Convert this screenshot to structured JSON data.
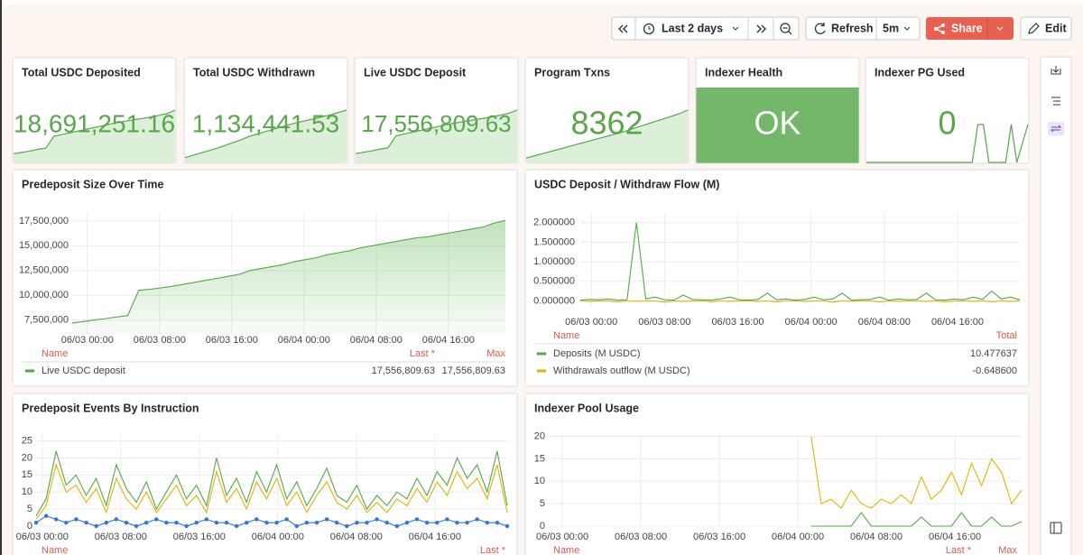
{
  "toolbar": {
    "time_range": "Last 2 days",
    "refresh": "Refresh",
    "interval": "5m",
    "share": "Share",
    "edit": "Edit"
  },
  "stats": [
    {
      "title": "Total USDC Deposited",
      "value": "18,691,251.16",
      "spark": [
        2,
        2.3,
        2.6,
        3,
        3.3,
        6,
        6.4,
        6.8,
        7.2,
        7.6,
        8,
        8.4,
        8.8,
        9.2,
        9.5,
        9.8,
        10.1,
        10.4,
        10.8,
        11.2,
        12
      ]
    },
    {
      "title": "Total USDC Withdrawn",
      "value": "1,134,441.53",
      "spark": [
        1,
        1.5,
        2,
        2.5,
        3,
        3.6,
        4.2,
        4.8,
        5.5,
        6,
        6.5,
        7,
        7.5,
        8,
        8.4,
        8.8,
        9.2,
        9.6,
        10,
        10.5,
        11
      ]
    },
    {
      "title": "Live USDC Deposit",
      "value": "17,556,809.63",
      "spark": [
        2,
        2.3,
        2.6,
        3,
        3.3,
        6,
        6.4,
        6.8,
        7.2,
        7.6,
        8,
        8.4,
        8.8,
        9.1,
        9.4,
        9.7,
        10,
        10.3,
        10.7,
        11.1,
        11.8
      ]
    },
    {
      "title": "Program Txns",
      "value": "8362",
      "spark": [
        1,
        1.5,
        2,
        2.5,
        3,
        3.5,
        4,
        4.5,
        5,
        5.5,
        6,
        6.5,
        7,
        7.6,
        8.2,
        8.8,
        9.4,
        10,
        10.6,
        11.2,
        12
      ]
    },
    {
      "title": "Indexer Health",
      "value": "OK"
    },
    {
      "title": "Indexer PG Used",
      "value": "0",
      "spark": [
        0,
        0,
        0,
        0,
        0,
        0,
        0,
        0,
        0,
        0,
        0,
        0,
        0,
        0,
        0,
        0,
        0,
        0,
        0,
        0,
        1,
        1,
        0,
        0,
        0,
        0,
        1,
        0,
        0.5,
        1
      ]
    }
  ],
  "chart_data": [
    {
      "type": "line",
      "title": "Predeposit Size Over Time",
      "ylim": [
        6100000,
        18400000
      ],
      "yticks": [
        {
          "value": 7500000,
          "label": "7,500,000"
        },
        {
          "value": 10000000,
          "label": "10,000,000"
        },
        {
          "value": 12500000,
          "label": "12,500,000"
        },
        {
          "value": 15000000,
          "label": "15,000,000"
        },
        {
          "value": 17500000,
          "label": "17,500,000"
        }
      ],
      "x_labels": [
        "06/03 00:00",
        "06/03 08:00",
        "06/03 16:00",
        "06/04 00:00",
        "06/04 08:00",
        "06/04 16:00"
      ],
      "legend_columns": [
        "Name",
        "Last *",
        "Max"
      ],
      "series": [
        {
          "name": "Live USDC deposit",
          "color": "#56a64b",
          "fill": true,
          "legend": [
            "17,556,809.63",
            "17,556,809.63"
          ],
          "values": [
            7200000,
            7350000,
            7500000,
            7650000,
            7800000,
            7950000,
            10500000,
            10600000,
            10750000,
            10900000,
            11100000,
            11300000,
            11500000,
            11700000,
            11900000,
            12100000,
            12500000,
            12700000,
            12900000,
            13100000,
            13400000,
            13600000,
            13800000,
            14100000,
            14300000,
            14500000,
            14800000,
            15000000,
            15200000,
            15400000,
            15600000,
            15800000,
            15900000,
            16100000,
            16300000,
            16500000,
            16700000,
            16900000,
            17300000,
            17556809.63
          ]
        }
      ]
    },
    {
      "type": "line",
      "title": "USDC Deposit / Withdraw Flow (M)",
      "ylim": [
        -0.15,
        2.27
      ],
      "yticks": [
        {
          "value": 0,
          "label": "0.000000"
        },
        {
          "value": 0.5,
          "label": "0.500000"
        },
        {
          "value": 1,
          "label": "1.000000"
        },
        {
          "value": 1.5,
          "label": "1.500000"
        },
        {
          "value": 2,
          "label": "2.000000"
        }
      ],
      "x_labels": [
        "06/03 00:00",
        "06/03 08:00",
        "06/03 16:00",
        "06/04 00:00",
        "06/04 08:00",
        "06/04 16:00"
      ],
      "legend_columns": [
        "Name",
        "Total"
      ],
      "series": [
        {
          "name": "Deposits (M USDC)",
          "color": "#56a64b",
          "legend": [
            "10.477637"
          ],
          "values": [
            0.02,
            0.04,
            0.03,
            0.05,
            0.02,
            0.03,
            2.0,
            0.05,
            0.1,
            0.03,
            0.02,
            0.15,
            0.04,
            0.03,
            0.02,
            0.05,
            0.1,
            0.03,
            0.02,
            0.04,
            0.2,
            0.03,
            0.05,
            0.02,
            0.04,
            0.1,
            0.03,
            0.05,
            0.2,
            0.02,
            0.03,
            0.04,
            0.1,
            0.02,
            0.05,
            0.03,
            0.04,
            0.2,
            0.03,
            0.02,
            0.05,
            0.03,
            0.1,
            0.04,
            0.25,
            0.05,
            0.1,
            0.03
          ]
        },
        {
          "name": "Withdrawals outflow (M USDC)",
          "color": "#e0b400",
          "legend": [
            "-0.648600"
          ],
          "values": [
            0,
            -0.01,
            0,
            0,
            -0.02,
            0,
            -0.01,
            0,
            0,
            -0.03,
            0,
            -0.01,
            0,
            0,
            -0.02,
            0,
            -0.01,
            0,
            0,
            -0.01,
            0,
            -0.02,
            0,
            0,
            -0.01,
            0,
            0,
            -0.03,
            0,
            -0.01,
            0,
            0,
            -0.02,
            0,
            -0.01,
            0,
            0,
            -0.01,
            0,
            -0.02,
            0,
            0,
            -0.01,
            0,
            -0.02,
            0,
            -0.01,
            0
          ]
        }
      ]
    },
    {
      "type": "line",
      "title": "Predeposit Events By Instruction",
      "ylim": [
        0,
        27
      ],
      "yticks": [
        0,
        5,
        10,
        15,
        20,
        25
      ],
      "x_labels": [
        "06/03 00:00",
        "06/03 08:00",
        "06/03 16:00",
        "06/04 00:00",
        "06/04 08:00",
        "06/04 16:00"
      ],
      "legend_columns": [
        "Name",
        "Last *"
      ],
      "series": [
        {
          "color": "#56a64b",
          "values": [
            3,
            8,
            22,
            12,
            15,
            9,
            14,
            6,
            18,
            11,
            7,
            13,
            5,
            10,
            15,
            8,
            12,
            6,
            20,
            9,
            14,
            7,
            16,
            10,
            18,
            8,
            13,
            6,
            11,
            17,
            9,
            7,
            12,
            5,
            9,
            6,
            10,
            8,
            14,
            9,
            16,
            12,
            20,
            14,
            18,
            10,
            22,
            6
          ]
        },
        {
          "color": "#e0b400",
          "values": [
            2,
            6,
            18,
            10,
            12,
            7,
            11,
            4,
            14,
            8,
            5,
            10,
            4,
            8,
            12,
            6,
            9,
            4,
            16,
            7,
            11,
            5,
            13,
            8,
            14,
            6,
            10,
            4,
            9,
            13,
            7,
            5,
            9,
            4,
            7,
            4,
            8,
            6,
            11,
            7,
            13,
            9,
            16,
            11,
            14,
            8,
            18,
            4
          ]
        },
        {
          "color": "#3274d9",
          "points": true,
          "values": [
            1,
            3,
            2,
            1,
            2,
            1,
            0,
            1,
            2,
            1,
            0,
            1,
            2,
            1,
            1,
            0,
            1,
            2,
            1,
            1,
            0,
            1,
            2,
            1,
            1,
            2,
            0,
            1,
            1,
            2,
            1,
            0,
            1,
            1,
            2,
            1,
            0,
            1,
            2,
            1,
            1,
            2,
            1,
            1,
            2,
            1,
            1,
            0
          ]
        }
      ]
    },
    {
      "type": "line",
      "title": "Indexer Pool Usage",
      "ylim": [
        0,
        20.5
      ],
      "yticks": [
        0,
        5,
        10,
        15,
        20
      ],
      "x_labels": [
        "06/03 00:00",
        "06/03 08:00",
        "06/03 16:00",
        "06/04 00:00",
        "06/04 08:00",
        "06/04 16:00"
      ],
      "legend_columns": [
        "Name",
        "Last *",
        "Max"
      ],
      "series": [
        {
          "color": "#e0b400",
          "values": [
            null,
            null,
            null,
            null,
            null,
            null,
            null,
            null,
            null,
            null,
            null,
            null,
            null,
            null,
            null,
            null,
            null,
            null,
            null,
            null,
            null,
            null,
            null,
            null,
            null,
            null,
            20,
            5,
            6,
            4,
            8,
            5,
            4,
            6,
            5,
            7,
            5,
            11,
            6,
            8,
            12,
            7,
            14,
            9,
            15,
            12,
            5,
            8
          ]
        },
        {
          "color": "#56a64b",
          "values": [
            null,
            null,
            null,
            null,
            null,
            null,
            null,
            null,
            null,
            null,
            null,
            null,
            null,
            null,
            null,
            null,
            null,
            null,
            null,
            null,
            null,
            null,
            null,
            null,
            null,
            null,
            0,
            0,
            0,
            0,
            0,
            3,
            0,
            0,
            0,
            0,
            0,
            2,
            0,
            0,
            0,
            3,
            0,
            0,
            2,
            0,
            0,
            1
          ]
        }
      ]
    }
  ]
}
